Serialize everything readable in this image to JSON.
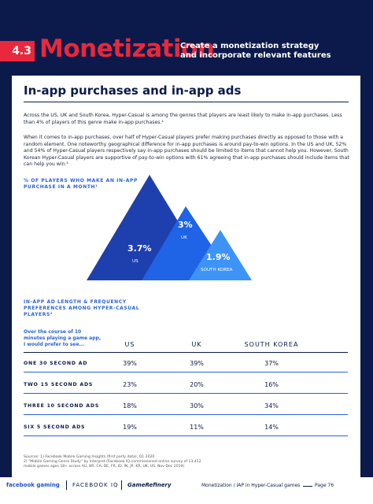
{
  "header": {
    "section": "4.3",
    "title": "Monetization",
    "subtitle": "Create a monetization strategy and incorporate relevant features"
  },
  "content": {
    "heading": "In-app purchases and in-app ads",
    "paragraphs": [
      "Across the US, UK and South Korea, Hyper-Casual is among the genres that players are least likely to make in-app purchases. Less than 4% of players of this genre make in-app purchases.¹",
      "When it comes to in-app purchases, over half of Hyper-Casual players prefer making purchases directly as opposed to those with a random element. One noteworthy geographical difference for in-app purchases is around pay-to-win options. In the US and UK, 52% and 54% of Hyper-Casual players respectively say in-app purchases should be limited to items that cannot help you. However, South Korean Hyper-Casual players are supportive of pay-to-win options with 61% agreeing that in-app purchases should include items that can help you win.²"
    ]
  },
  "purchase_graphic": {
    "caption": "% OF PLAYERS WHO MAKE AN IN-APP PURCHASE IN A MONTH¹",
    "items": [
      {
        "value": "3.7%",
        "label": "US"
      },
      {
        "value": "3%",
        "label": "UK"
      },
      {
        "value": "1.9%",
        "label": "SOUTH KOREA"
      }
    ]
  },
  "table": {
    "caption": "IN-APP AD LENGTH & FREQUENCY PREFERENCES AMONG HYPER-CASUAL PLAYERS²",
    "corner": "Over the course of 10 minutes playing a game app, I would prefer to see...",
    "columns": [
      "US",
      "UK",
      "SOUTH KOREA"
    ],
    "rows": [
      [
        "ONE 30 SECOND AD",
        "39%",
        "39%",
        "37%"
      ],
      [
        "TWO 15 SECOND ADS",
        "23%",
        "20%",
        "16%"
      ],
      [
        "THREE 10 SECOND ADS",
        "18%",
        "30%",
        "34%"
      ],
      [
        "SIX 5 SECOND ADS",
        "19%",
        "11%",
        "14%"
      ]
    ]
  },
  "sources": [
    "Sources: 1) Facebook Mobile Gaming Insights (first party data), Q1 2020",
    "2) \"Mobile Gaming Genre Study\" by Interpret (Facebook IQ-commissioned online survey of 13,412",
    "mobile games ages 18+ across AU, BR, CA, DE, FR, ID, IN, JP, KR, UK, US, Nov-Dec 2019)"
  ],
  "footer": {
    "brands": [
      "facebook gaming",
      "FACEBOOK IQ",
      "GameRefinery"
    ],
    "section_label": "Monetization / IAP in Hyper-Casual games",
    "page": "Page 76"
  }
}
